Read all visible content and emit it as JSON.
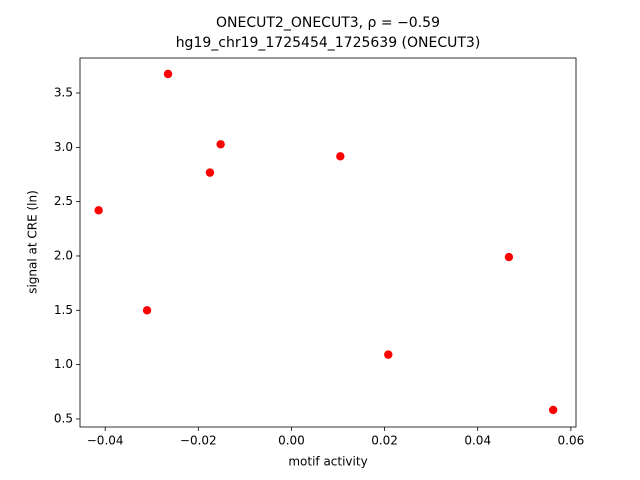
{
  "chart_data": {
    "type": "scatter",
    "title": "ONECUT2_ONECUT3, ρ = −0.59",
    "subtitle": "hg19_chr19_1725454_1725639 (ONECUT3)",
    "x_label": "motif activity",
    "y_label": "signal at CRE (ln)",
    "series": [
      {
        "name": "CRE",
        "color": "#ff0000",
        "x": [
          -0.0414,
          -0.031,
          -0.0265,
          -0.0175,
          -0.0152,
          0.0105,
          0.0208,
          0.0467,
          0.0562
        ],
        "values": [
          2.42,
          1.5,
          3.675,
          2.767,
          3.028,
          2.917,
          1.092,
          1.99,
          0.583
        ]
      }
    ],
    "xlim": [
      -0.0454,
      0.0611
    ],
    "ylim": [
      0.426,
      3.822
    ],
    "xticks": [
      {
        "value": -0.04,
        "label": "−0.04"
      },
      {
        "value": -0.02,
        "label": "−0.02"
      },
      {
        "value": 0,
        "label": "0.00"
      },
      {
        "value": 0.02,
        "label": "0.02"
      },
      {
        "value": 0.04,
        "label": "0.04"
      },
      {
        "value": 0.06,
        "label": "0.06"
      }
    ],
    "yticks": [
      {
        "value": 0.5,
        "label": "0.5"
      },
      {
        "value": 1,
        "label": "1.0"
      },
      {
        "value": 1.5,
        "label": "1.5"
      },
      {
        "value": 2,
        "label": "2.0"
      },
      {
        "value": 2.5,
        "label": "2.5"
      },
      {
        "value": 3,
        "label": "3.0"
      },
      {
        "value": 3.5,
        "label": "3.5"
      }
    ]
  }
}
